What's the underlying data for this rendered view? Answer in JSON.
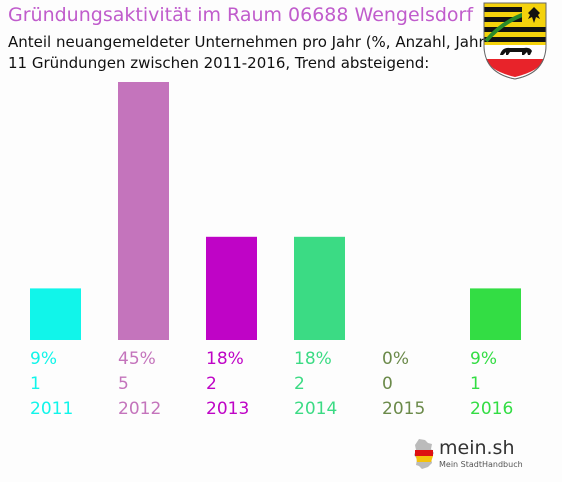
{
  "header": {
    "title": "Gründungsaktivität im Raum 06688 Wengelsdorf",
    "subtitle_line1": "Anteil neuangemeldeter Unternehmen pro Jahr (%, Anzahl, Jahr)",
    "subtitle_line2": "11 Gründungen zwischen 2011-2016, Trend absteigend:"
  },
  "emblem": {
    "icon": "saxony-anhalt-coat-of-arms-icon"
  },
  "chart_data": {
    "type": "bar",
    "categories": [
      "2011",
      "2012",
      "2013",
      "2014",
      "2015",
      "2016"
    ],
    "values": [
      9,
      45,
      18,
      18,
      0,
      9
    ],
    "counts": [
      1,
      5,
      2,
      2,
      0,
      1
    ],
    "percent_labels": [
      "9%",
      "45%",
      "18%",
      "18%",
      "0%",
      "9%"
    ],
    "count_labels": [
      "1",
      "5",
      "2",
      "2",
      "0",
      "1"
    ],
    "colors": [
      "#11f5ea",
      "#c474bc",
      "#bf04c6",
      "#3bdb84",
      "#6b8a4a",
      "#33dd44"
    ],
    "ylim": [
      0,
      45
    ],
    "grid": false,
    "legend": "none"
  },
  "brand": {
    "name": "mein.sh",
    "tagline": "Mein StadtHandbuch",
    "icon": "germany-map-icon"
  }
}
